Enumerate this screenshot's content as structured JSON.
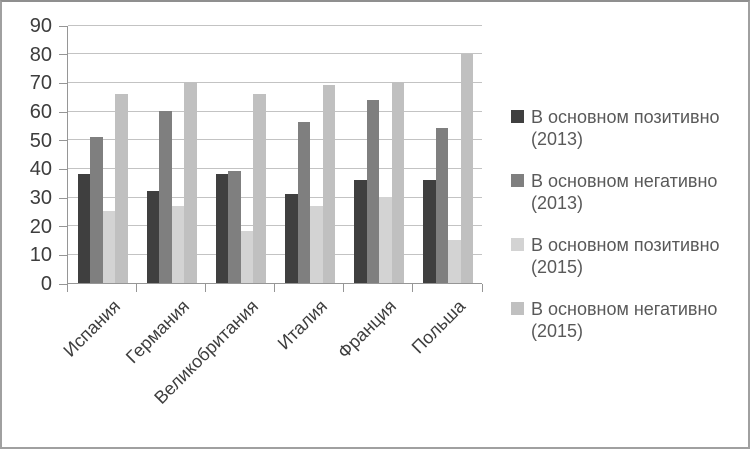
{
  "chart_data": {
    "type": "bar",
    "title": "",
    "xlabel": "",
    "ylabel": "",
    "categories": [
      "Испания",
      "Германия",
      "Великобритания",
      "Италия",
      "Франция",
      "Польша"
    ],
    "series": [
      {
        "name": "В основном позитивно (2013)",
        "legend_line1": "В основном позитивно",
        "legend_line2": "(2013)",
        "color": "#3f3f3f",
        "values": [
          38,
          32,
          38,
          31,
          36,
          36
        ]
      },
      {
        "name": "В основном негативно (2013)",
        "legend_line1": "В основном негативно",
        "legend_line2": "(2013)",
        "color": "#7f7f7f",
        "values": [
          51,
          60,
          39,
          56,
          64,
          54
        ]
      },
      {
        "name": "В основном позитивно (2015)",
        "legend_line1": "В основном позитивно",
        "legend_line2": "(2015)",
        "color": "#d3d3d3",
        "values": [
          25,
          27,
          18,
          27,
          30,
          15
        ]
      },
      {
        "name": "В основном негативно (2015)",
        "legend_line1": "В основном негативно",
        "legend_line2": "(2015)",
        "color": "#c0c0c0",
        "values": [
          66,
          70,
          66,
          69,
          70,
          80
        ]
      }
    ],
    "ylim": [
      0,
      90
    ],
    "ytick_step": 10,
    "yticks": [
      "0",
      "10",
      "20",
      "30",
      "40",
      "50",
      "60",
      "70",
      "80",
      "90"
    ],
    "grid": "horizontal",
    "legend_position": "right",
    "colors": {
      "axis_line": "#969696",
      "gridline": "#c3c3c3",
      "axis_text": "#3d3d3d",
      "legend_text": "#595959",
      "background": "#ffffff",
      "frame_border": "#a0a0a0"
    }
  }
}
